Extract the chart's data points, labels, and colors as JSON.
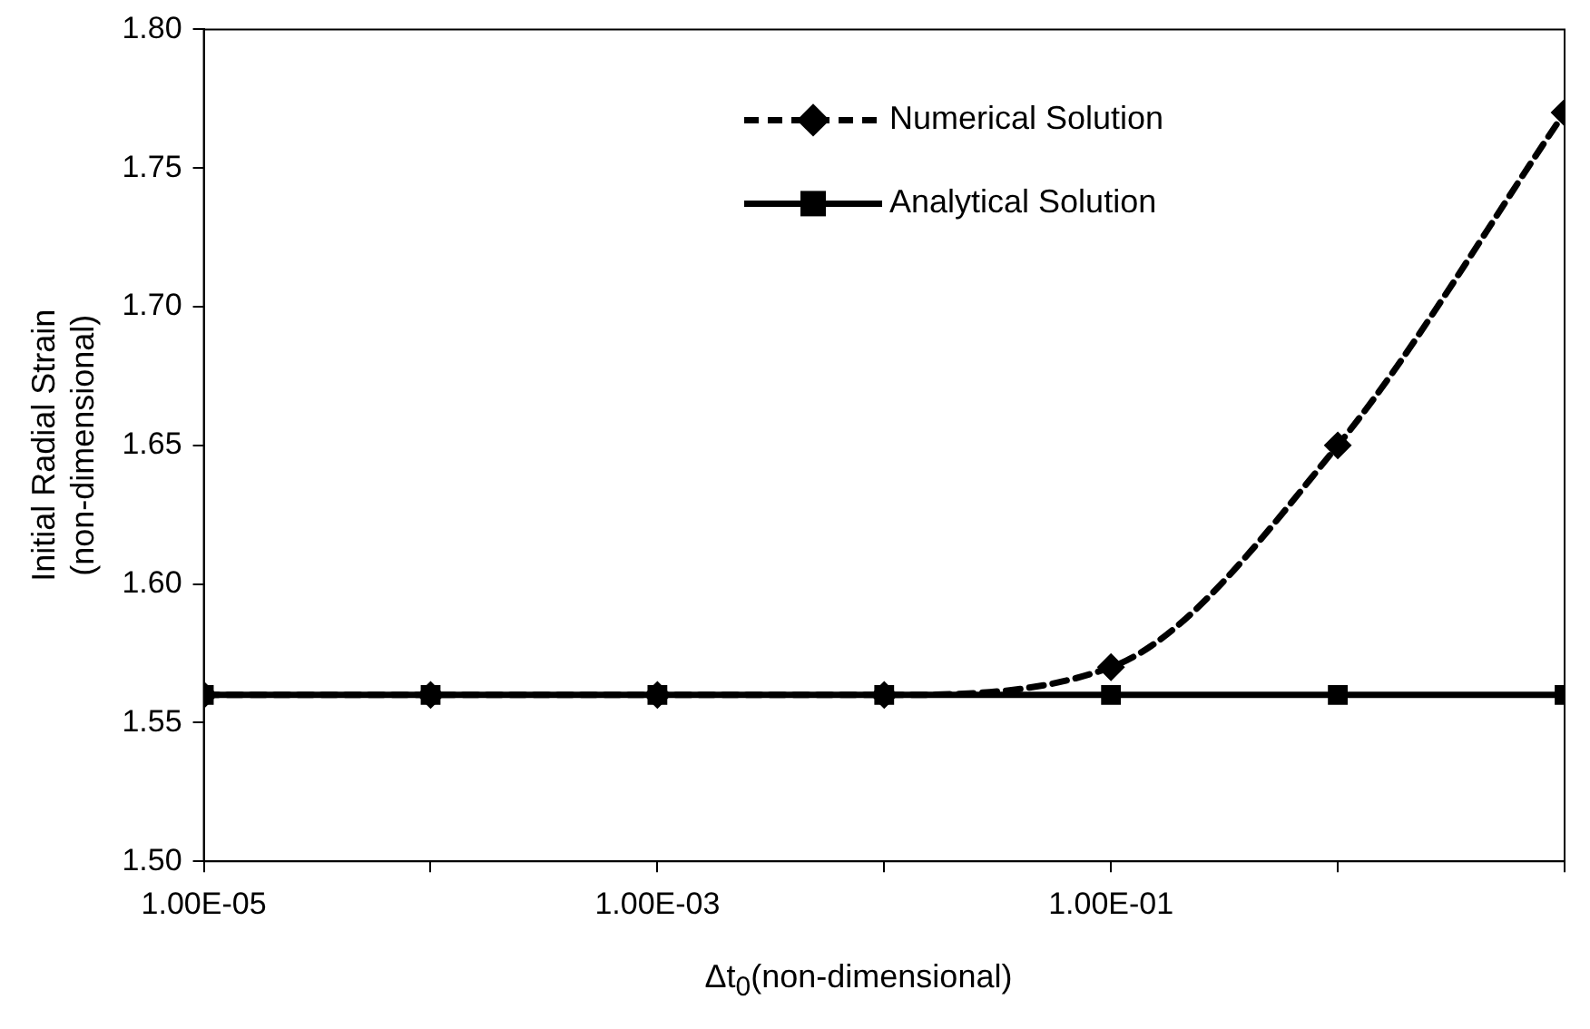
{
  "chart_data": {
    "type": "line",
    "xlabel": "Δt$_{0}$(non-dimensional)",
    "ylabel": "Initial Radial Strain\n(non-dimensional)",
    "x": [
      1e-05,
      0.0001,
      0.001,
      0.01,
      0.1,
      1,
      10
    ],
    "series": [
      {
        "name": "Numerical Solution",
        "color": "#000000",
        "values": [
          1.56,
          1.56,
          1.56,
          1.56,
          1.57,
          1.65,
          1.77
        ],
        "marker": "diamond",
        "line_style": "dashed"
      },
      {
        "name": "Analytical Solution",
        "color": "#000000",
        "values": [
          1.56,
          1.56,
          1.56,
          1.56,
          1.56,
          1.56,
          1.56
        ],
        "marker": "square",
        "line_style": "solid"
      }
    ],
    "log": "x",
    "xlim": [
      1e-05,
      10
    ],
    "xticks": [
      {
        "value": 1e-05,
        "label": "1.00E-05"
      },
      {
        "value": 0.0001,
        "label": null
      },
      {
        "value": 0.001,
        "label": "1.00E-03"
      },
      {
        "value": 0.01,
        "label": null
      },
      {
        "value": 0.1,
        "label": "1.00E-01"
      },
      {
        "value": 1,
        "label": null
      },
      {
        "value": 10,
        "label": null
      }
    ],
    "ylim": [
      1.5,
      1.8
    ],
    "yticks": [
      {
        "value": 1.5,
        "label": "1.50"
      },
      {
        "value": 1.55,
        "label": "1.55"
      },
      {
        "value": 1.6,
        "label": "1.60"
      },
      {
        "value": 1.65,
        "label": "1.65"
      },
      {
        "value": 1.7,
        "label": "1.70"
      },
      {
        "value": 1.75,
        "label": "1.75"
      },
      {
        "value": 1.8,
        "label": "1.80"
      }
    ],
    "grid": false,
    "legend": "top right"
  }
}
